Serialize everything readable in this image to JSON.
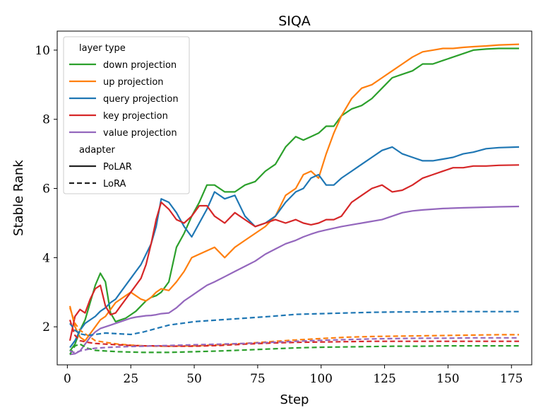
{
  "chart_data": {
    "type": "line",
    "title": "SIQA",
    "xlabel": "Step",
    "ylabel": "Stable Rank",
    "xlim": [
      -4,
      183
    ],
    "ylim": [
      0.9,
      10.55
    ],
    "xticks": [
      0,
      25,
      50,
      75,
      100,
      125,
      150,
      175
    ],
    "yticks": [
      2,
      4,
      6,
      8,
      10
    ],
    "grid": false,
    "legend": {
      "placement": "top-left",
      "group1_title": "layer type",
      "group2_title": "adapter",
      "style_entries": [
        {
          "label": "PoLAR",
          "dash": "solid"
        },
        {
          "label": "LoRA",
          "dash": "dashed"
        }
      ]
    },
    "series": [
      {
        "name": "down projection",
        "adapter": "PoLAR",
        "color": "#2ca02c",
        "x": [
          1,
          3,
          5,
          7,
          9,
          11,
          13,
          15,
          17,
          19,
          21,
          23,
          25,
          27,
          29,
          31,
          33,
          35,
          37,
          40,
          43,
          46,
          49,
          52,
          55,
          58,
          62,
          66,
          70,
          74,
          78,
          82,
          86,
          90,
          93,
          96,
          99,
          102,
          105,
          108,
          112,
          116,
          120,
          124,
          128,
          132,
          136,
          140,
          144,
          148,
          152,
          156,
          160,
          165,
          170,
          178
        ],
        "values": [
          1.3,
          1.5,
          1.9,
          2.2,
          2.7,
          3.2,
          3.55,
          3.3,
          2.4,
          2.15,
          2.2,
          2.25,
          2.35,
          2.45,
          2.6,
          2.75,
          2.85,
          2.9,
          3.0,
          3.3,
          4.3,
          4.7,
          5.2,
          5.6,
          6.1,
          6.1,
          5.9,
          5.9,
          6.1,
          6.2,
          6.5,
          6.7,
          7.2,
          7.5,
          7.4,
          7.5,
          7.6,
          7.8,
          7.8,
          8.1,
          8.3,
          8.4,
          8.6,
          8.9,
          9.2,
          9.3,
          9.4,
          9.6,
          9.6,
          9.7,
          9.8,
          9.9,
          10.0,
          10.03,
          10.05,
          10.05
        ]
      },
      {
        "name": "up projection",
        "adapter": "PoLAR",
        "color": "#ff7f0e",
        "x": [
          1,
          3,
          5,
          7,
          9,
          11,
          13,
          15,
          17,
          19,
          21,
          23,
          25,
          27,
          29,
          31,
          33,
          35,
          37,
          40,
          43,
          46,
          49,
          52,
          55,
          58,
          62,
          66,
          70,
          74,
          78,
          82,
          86,
          90,
          93,
          96,
          99,
          102,
          105,
          108,
          112,
          116,
          120,
          124,
          128,
          132,
          136,
          140,
          144,
          148,
          152,
          156,
          160,
          165,
          170,
          178
        ],
        "values": [
          2.6,
          2.0,
          1.7,
          1.6,
          1.8,
          2.0,
          2.2,
          2.3,
          2.5,
          2.7,
          2.8,
          2.9,
          3.0,
          2.9,
          2.8,
          2.75,
          2.85,
          3.0,
          3.1,
          3.05,
          3.3,
          3.6,
          4.0,
          4.1,
          4.2,
          4.3,
          4.0,
          4.3,
          4.5,
          4.7,
          4.9,
          5.2,
          5.8,
          6.0,
          6.4,
          6.5,
          6.3,
          7.0,
          7.6,
          8.1,
          8.6,
          8.9,
          9.0,
          9.2,
          9.4,
          9.6,
          9.8,
          9.95,
          10.0,
          10.05,
          10.05,
          10.08,
          10.1,
          10.12,
          10.15,
          10.17
        ]
      },
      {
        "name": "query projection",
        "adapter": "PoLAR",
        "color": "#1f77b4",
        "x": [
          1,
          3,
          5,
          7,
          9,
          11,
          13,
          15,
          17,
          19,
          21,
          23,
          25,
          27,
          29,
          31,
          33,
          35,
          37,
          40,
          43,
          46,
          49,
          52,
          55,
          58,
          62,
          66,
          70,
          74,
          78,
          82,
          86,
          90,
          93,
          96,
          99,
          102,
          105,
          108,
          112,
          116,
          120,
          124,
          128,
          132,
          136,
          140,
          144,
          148,
          152,
          156,
          160,
          165,
          170,
          178
        ],
        "values": [
          1.4,
          1.6,
          1.9,
          2.1,
          2.2,
          2.3,
          2.45,
          2.55,
          2.7,
          2.8,
          3.0,
          3.2,
          3.4,
          3.6,
          3.8,
          4.1,
          4.4,
          4.9,
          5.7,
          5.6,
          5.3,
          4.9,
          4.6,
          5.0,
          5.4,
          5.9,
          5.7,
          5.8,
          5.2,
          4.9,
          5.0,
          5.2,
          5.6,
          5.9,
          6.0,
          6.3,
          6.4,
          6.1,
          6.1,
          6.3,
          6.5,
          6.7,
          6.9,
          7.1,
          7.2,
          7.0,
          6.9,
          6.8,
          6.8,
          6.85,
          6.9,
          7.0,
          7.05,
          7.15,
          7.18,
          7.2
        ]
      },
      {
        "name": "key projection",
        "adapter": "PoLAR",
        "color": "#d62728",
        "x": [
          1,
          3,
          5,
          7,
          9,
          11,
          13,
          15,
          17,
          19,
          21,
          23,
          25,
          27,
          29,
          31,
          33,
          35,
          37,
          40,
          43,
          46,
          49,
          52,
          55,
          58,
          62,
          66,
          70,
          74,
          78,
          82,
          86,
          90,
          93,
          96,
          99,
          102,
          105,
          108,
          112,
          116,
          120,
          124,
          128,
          132,
          136,
          140,
          144,
          148,
          152,
          156,
          160,
          165,
          170,
          178
        ],
        "values": [
          1.6,
          2.3,
          2.5,
          2.4,
          2.8,
          3.1,
          3.2,
          2.6,
          2.35,
          2.4,
          2.6,
          2.8,
          3.0,
          3.2,
          3.4,
          3.8,
          4.4,
          5.1,
          5.6,
          5.4,
          5.1,
          5.0,
          5.2,
          5.5,
          5.5,
          5.2,
          5.0,
          5.3,
          5.1,
          4.9,
          5.0,
          5.1,
          5.0,
          5.1,
          5.0,
          4.95,
          5.0,
          5.1,
          5.1,
          5.2,
          5.6,
          5.8,
          6.0,
          6.1,
          5.9,
          5.95,
          6.1,
          6.3,
          6.4,
          6.5,
          6.6,
          6.6,
          6.65,
          6.65,
          6.67,
          6.68
        ]
      },
      {
        "name": "value projection",
        "adapter": "PoLAR",
        "color": "#9467bd",
        "x": [
          1,
          3,
          5,
          7,
          9,
          11,
          13,
          15,
          17,
          19,
          21,
          23,
          25,
          27,
          29,
          31,
          33,
          35,
          37,
          40,
          43,
          46,
          49,
          52,
          55,
          58,
          62,
          66,
          70,
          74,
          78,
          82,
          86,
          90,
          93,
          96,
          99,
          102,
          105,
          108,
          112,
          116,
          120,
          124,
          128,
          132,
          136,
          140,
          144,
          148,
          152,
          156,
          160,
          165,
          170,
          178
        ],
        "values": [
          1.2,
          1.22,
          1.3,
          1.5,
          1.7,
          1.85,
          1.95,
          2.0,
          2.05,
          2.1,
          2.15,
          2.2,
          2.25,
          2.28,
          2.3,
          2.32,
          2.33,
          2.35,
          2.38,
          2.4,
          2.55,
          2.75,
          2.9,
          3.05,
          3.2,
          3.3,
          3.45,
          3.6,
          3.75,
          3.9,
          4.1,
          4.25,
          4.4,
          4.5,
          4.6,
          4.68,
          4.75,
          4.8,
          4.85,
          4.9,
          4.95,
          5.0,
          5.05,
          5.1,
          5.2,
          5.3,
          5.35,
          5.38,
          5.4,
          5.42,
          5.43,
          5.44,
          5.45,
          5.46,
          5.47,
          5.48
        ]
      },
      {
        "name": "down projection",
        "adapter": "LoRA",
        "color": "#2ca02c",
        "x": [
          1,
          3,
          5,
          8,
          11,
          15,
          20,
          25,
          30,
          35,
          40,
          50,
          60,
          70,
          80,
          90,
          100,
          110,
          120,
          130,
          140,
          150,
          160,
          170,
          178
        ],
        "values": [
          1.2,
          1.45,
          1.5,
          1.38,
          1.32,
          1.3,
          1.28,
          1.27,
          1.26,
          1.26,
          1.26,
          1.28,
          1.3,
          1.33,
          1.36,
          1.39,
          1.41,
          1.42,
          1.43,
          1.44,
          1.44,
          1.45,
          1.45,
          1.45,
          1.45
        ]
      },
      {
        "name": "up projection",
        "adapter": "LoRA",
        "color": "#ff7f0e",
        "x": [
          1,
          3,
          5,
          8,
          11,
          15,
          20,
          25,
          30,
          35,
          40,
          50,
          60,
          70,
          80,
          90,
          100,
          110,
          120,
          130,
          140,
          150,
          160,
          170,
          178
        ],
        "values": [
          2.55,
          2.1,
          1.9,
          1.75,
          1.6,
          1.55,
          1.5,
          1.47,
          1.45,
          1.44,
          1.44,
          1.45,
          1.48,
          1.52,
          1.57,
          1.62,
          1.66,
          1.7,
          1.72,
          1.73,
          1.74,
          1.75,
          1.76,
          1.77,
          1.77
        ]
      },
      {
        "name": "query projection",
        "adapter": "LoRA",
        "color": "#1f77b4",
        "x": [
          1,
          3,
          5,
          8,
          11,
          15,
          20,
          25,
          30,
          35,
          40,
          50,
          60,
          70,
          80,
          90,
          100,
          110,
          120,
          130,
          140,
          150,
          160,
          170,
          178
        ],
        "values": [
          2.1,
          1.9,
          1.8,
          1.75,
          1.78,
          1.82,
          1.8,
          1.78,
          1.85,
          1.95,
          2.05,
          2.15,
          2.2,
          2.25,
          2.3,
          2.36,
          2.38,
          2.4,
          2.42,
          2.43,
          2.43,
          2.44,
          2.44,
          2.44,
          2.44
        ]
      },
      {
        "name": "key projection",
        "adapter": "LoRA",
        "color": "#d62728",
        "x": [
          1,
          3,
          5,
          8,
          11,
          15,
          20,
          25,
          30,
          35,
          40,
          50,
          60,
          70,
          80,
          90,
          100,
          110,
          120,
          130,
          140,
          150,
          160,
          170,
          178
        ],
        "values": [
          2.2,
          1.75,
          1.6,
          1.55,
          1.52,
          1.5,
          1.48,
          1.46,
          1.45,
          1.45,
          1.44,
          1.44,
          1.46,
          1.5,
          1.53,
          1.55,
          1.56,
          1.57,
          1.58,
          1.58,
          1.58,
          1.58,
          1.58,
          1.58,
          1.58
        ]
      },
      {
        "name": "value projection",
        "adapter": "LoRA",
        "color": "#9467bd",
        "x": [
          1,
          3,
          5,
          8,
          11,
          15,
          20,
          25,
          30,
          35,
          40,
          50,
          60,
          70,
          80,
          90,
          100,
          110,
          120,
          130,
          140,
          150,
          160,
          170,
          178
        ],
        "values": [
          1.3,
          1.25,
          1.3,
          1.35,
          1.38,
          1.4,
          1.42,
          1.43,
          1.44,
          1.45,
          1.46,
          1.48,
          1.5,
          1.52,
          1.55,
          1.58,
          1.61,
          1.63,
          1.65,
          1.66,
          1.67,
          1.67,
          1.68,
          1.68,
          1.68
        ]
      }
    ]
  }
}
